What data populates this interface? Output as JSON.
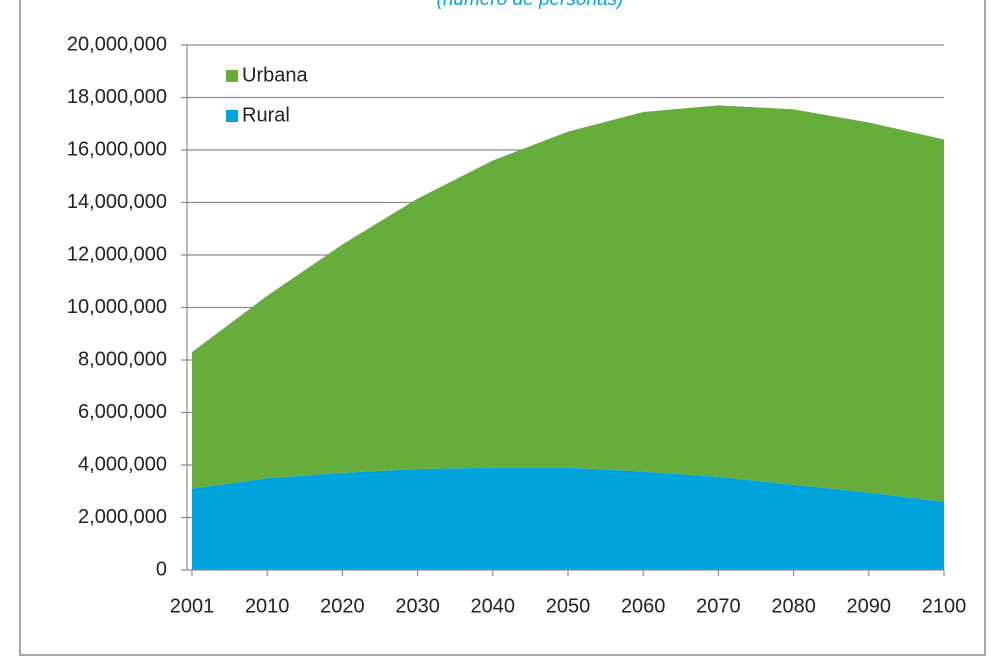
{
  "chart_data": {
    "type": "stacked-area",
    "subtitle": "(número de personas)",
    "categories": [
      "2001",
      "2010",
      "2020",
      "2030",
      "2040",
      "2050",
      "2060",
      "2070",
      "2080",
      "2090",
      "2100"
    ],
    "series": [
      {
        "name": "Rural",
        "color": "#00a3dc",
        "values": [
          3100000,
          3500000,
          3700000,
          3850000,
          3900000,
          3900000,
          3750000,
          3550000,
          3250000,
          2950000,
          2600000
        ]
      },
      {
        "name": "Urbana",
        "color": "#66ad3c",
        "values": [
          5200000,
          6950000,
          8700000,
          10300000,
          11700000,
          12800000,
          13700000,
          14150000,
          14300000,
          14100000,
          13800000
        ]
      }
    ],
    "ylim": [
      0,
      20000000
    ],
    "yticks": [
      0,
      {
        "value": 2000000,
        "label": "2,000,000"
      },
      {
        "value": 4000000,
        "label": "4,000,000"
      },
      {
        "value": 6000000,
        "label": "6,000,000"
      },
      {
        "value": 8000000,
        "label": "8,000,000"
      },
      {
        "value": 10000000,
        "label": "10,000,000"
      },
      {
        "value": 12000000,
        "label": "12,000,000"
      },
      {
        "value": 14000000,
        "label": "14,000,000"
      },
      {
        "value": 16000000,
        "label": "16,000,000"
      },
      {
        "value": 18000000,
        "label": "18,000,000"
      },
      {
        "value": 20000000,
        "label": "20,000,000"
      }
    ],
    "grid": true,
    "legend": "top-left"
  }
}
